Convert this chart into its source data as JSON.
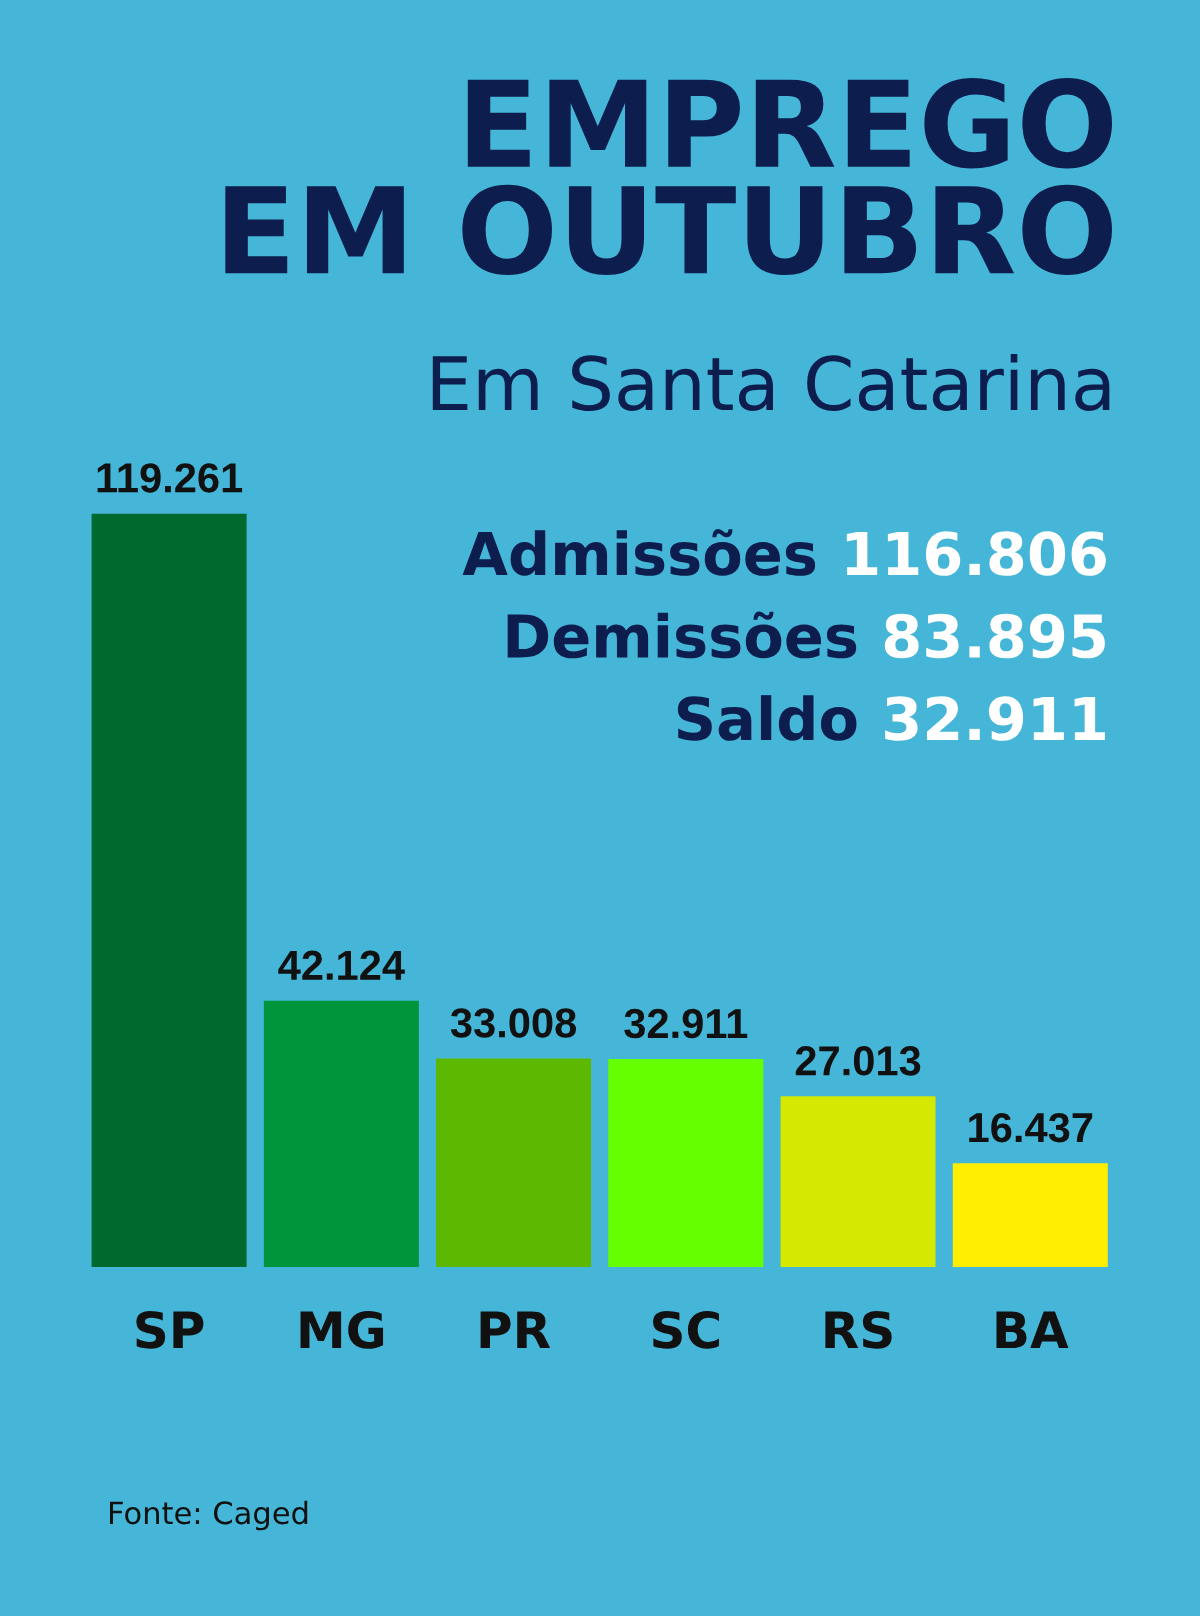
{
  "chart_data": {
    "type": "bar",
    "title": "EMPREGO\nEM OUTUBRO",
    "subtitle": "Em Santa Catarina",
    "categories": [
      "SP",
      "MG",
      "PR",
      "SC",
      "RS",
      "BA"
    ],
    "values": [
      119261,
      42124,
      33008,
      32911,
      27013,
      16437
    ],
    "colors": [
      "#006a2e",
      "#00953a",
      "#5cb800",
      "#66ff00",
      "#d4e800",
      "#ffee00"
    ],
    "value_labels": [
      "119.261",
      "42.124",
      "33.008",
      "32.911",
      "27.013",
      "16.437"
    ],
    "tick_labels": "x",
    "annotations": [
      "Admissões 116.806",
      "Demissões 83.895",
      "Saldo 32.911",
      "Fonte: Caged"
    ]
  }
}
